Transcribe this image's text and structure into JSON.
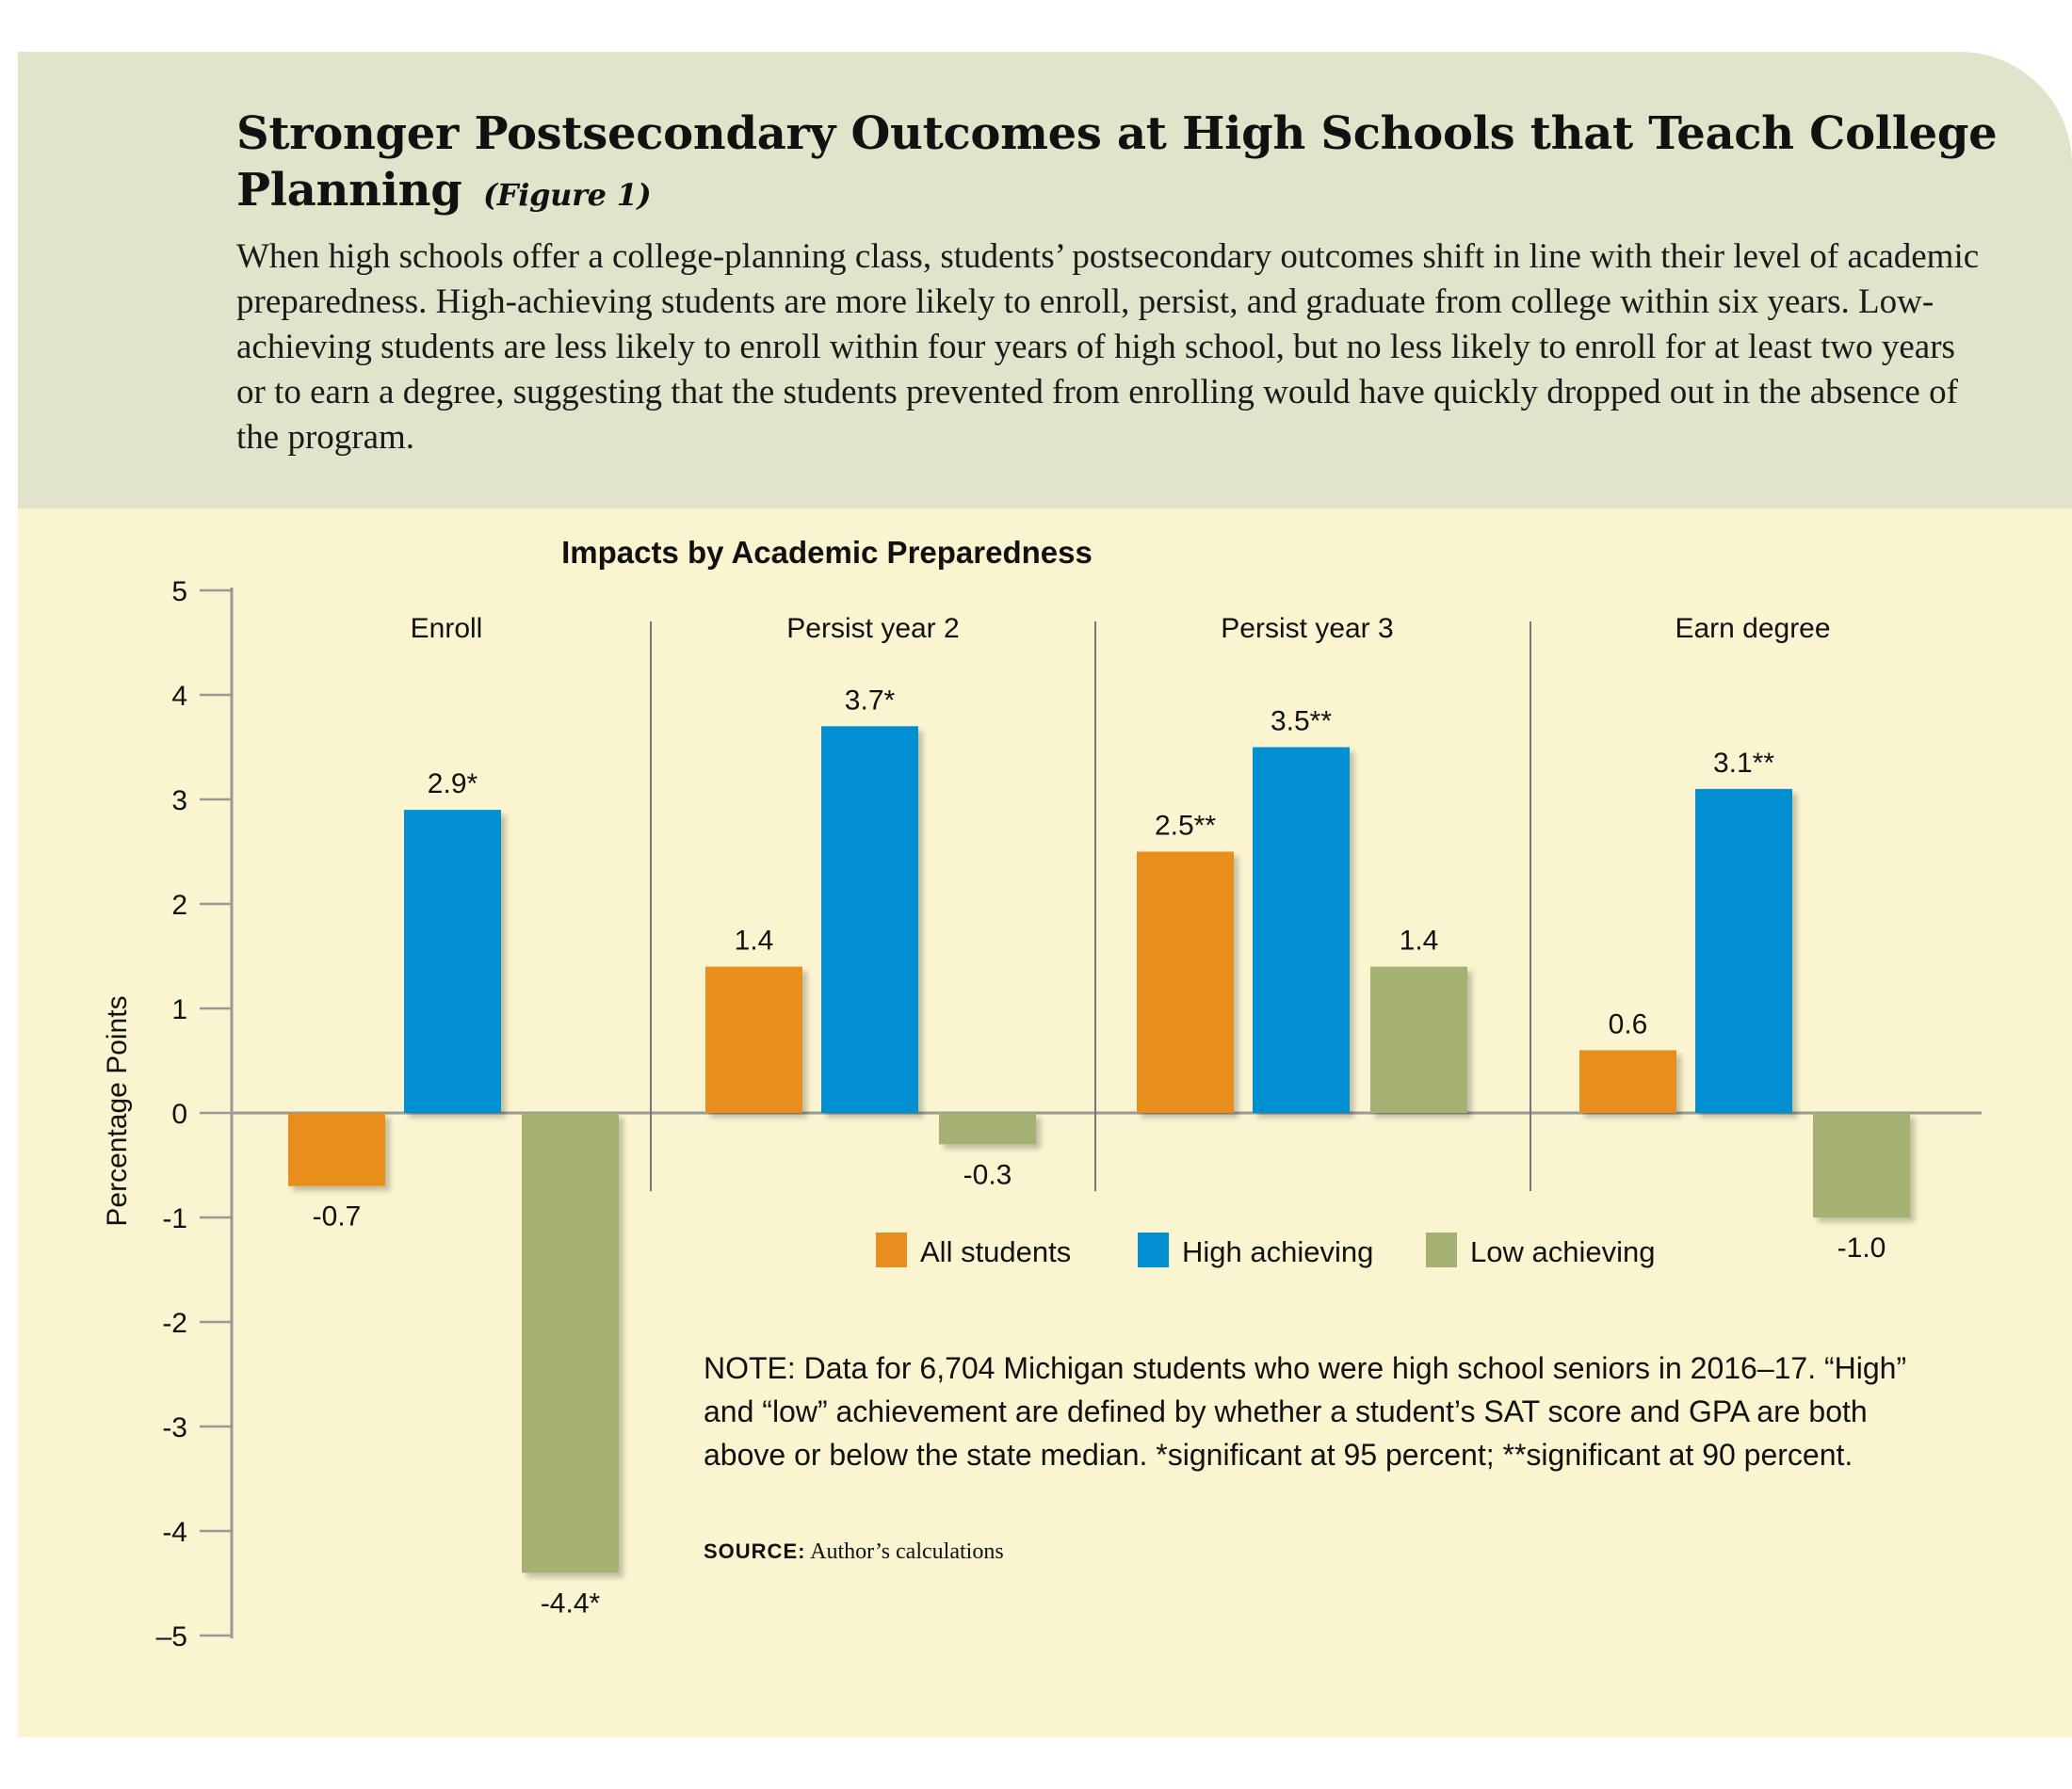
{
  "header": {
    "title": "Stronger Postsecondary Outcomes at High Schools that Teach College Planning",
    "figure_label": "(Figure 1)",
    "subtitle": "When high schools offer a college-planning class, students’ postsecondary outcomes shift in line with their level of academic preparedness. High-achieving students are more likely to enroll, persist, and graduate from college within six years. Low-achieving students are less likely to enroll within four years of high school, but no less likely to enroll for at least two years or to earn a degree, suggesting that the students prevented from enrolling would have quickly dropped out in the absence of the program."
  },
  "chart_data": {
    "type": "bar",
    "title": "Impacts by Academic Preparedness",
    "ylabel": "Percentage Points",
    "ylim": [
      -5,
      5
    ],
    "yticks": [
      "5",
      "4",
      "3",
      "2",
      "1",
      "0",
      "-1",
      "-2",
      "-3",
      "-4",
      "–5"
    ],
    "categories": [
      "Enroll",
      "Persist year 2",
      "Persist year 3",
      "Earn degree"
    ],
    "series": [
      {
        "name": "All students",
        "color": "#e88e1f",
        "values": [
          -0.7,
          1.4,
          2.5,
          0.6
        ],
        "labels": [
          "-0.7",
          "1.4",
          "2.5**",
          "0.6"
        ]
      },
      {
        "name": "High achieving",
        "color": "#0090d2",
        "values": [
          2.9,
          3.7,
          3.5,
          3.1
        ],
        "labels": [
          "2.9*",
          "3.7*",
          "3.5**",
          "3.1**"
        ]
      },
      {
        "name": "Low achieving",
        "color": "#a4b173",
        "values": [
          -4.4,
          -0.3,
          1.4,
          -1.0
        ],
        "labels": [
          "-4.4*",
          "-0.3",
          "1.4",
          "-1.0"
        ]
      }
    ],
    "legend_position": "center"
  },
  "note": "NOTE: Data for 6,704 Michigan students who were high school seniors in 2016–17. “High” and “low” achievement are defined by whether a student’s SAT score and GPA are both above or below the state median. *significant at 95 percent; **significant at 90 percent.",
  "source": {
    "label": "SOURCE:",
    "text": "Author’s calculations"
  }
}
